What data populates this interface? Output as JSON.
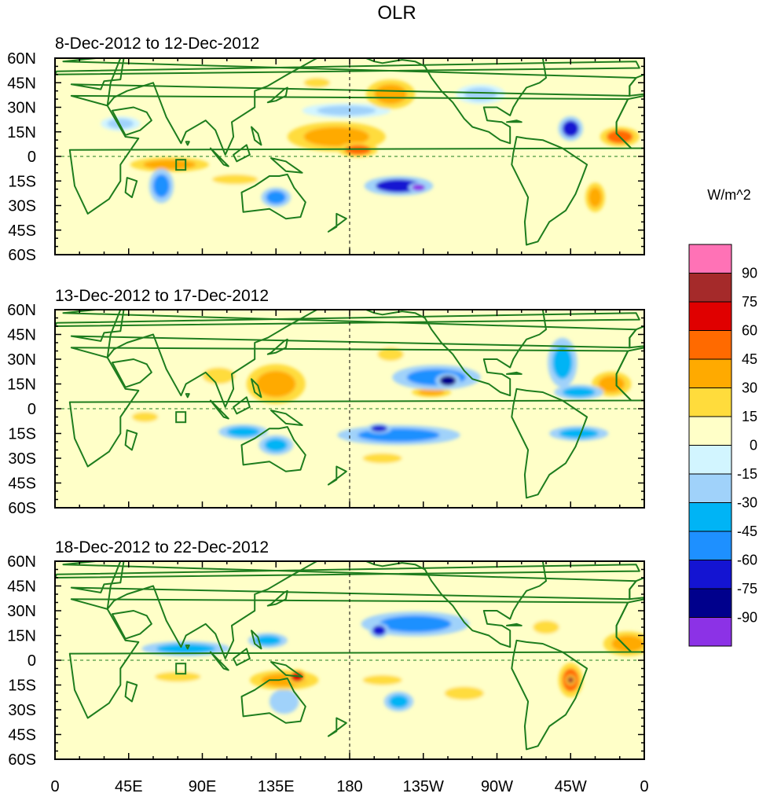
{
  "figure": {
    "title": "OLR",
    "units": "W/m^2",
    "lat_labels": [
      "60N",
      "45N",
      "30N",
      "15N",
      "0",
      "15S",
      "30S",
      "45S",
      "60S"
    ],
    "lon_labels": [
      "0",
      "45E",
      "90E",
      "135E",
      "180",
      "135W",
      "90W",
      "45W",
      "0"
    ],
    "colorbar": {
      "labels": [
        "90",
        "75",
        "60",
        "45",
        "30",
        "15",
        "0",
        "-15",
        "-30",
        "-45",
        "-60",
        "-75",
        "-90"
      ],
      "colors": [
        "#ff72b6",
        "#a52a2a",
        "#e00000",
        "#ff6a00",
        "#ffaa00",
        "#ffdc3c",
        "#ffffc8",
        "#d2f5ff",
        "#a0d2fa",
        "#00b4f5",
        "#1e90ff",
        "#1414d2",
        "#00008c",
        "#8c32e6"
      ]
    },
    "coast_color": "#1e7d1e",
    "grid_color": "#1e7d1e"
  },
  "panels": [
    {
      "title": "8-Dec-2012 to 12-Dec-2012",
      "anomalies": [
        {
          "lon": 172,
          "lat": 12,
          "rx": 20,
          "ry": 6,
          "v": 35
        },
        {
          "lon": 185,
          "lat": 4,
          "rx": 8,
          "ry": 3,
          "v": 50
        },
        {
          "lon": 210,
          "lat": -18,
          "rx": 14,
          "ry": 4,
          "v": -70
        },
        {
          "lon": 222,
          "lat": -19,
          "rx": 4,
          "ry": 2,
          "v": -92
        },
        {
          "lon": 135,
          "lat": -25,
          "rx": 6,
          "ry": 4,
          "v": -55
        },
        {
          "lon": 65,
          "lat": -18,
          "rx": 5,
          "ry": 7,
          "v": -55
        },
        {
          "lon": 70,
          "lat": -5,
          "rx": 16,
          "ry": 3,
          "v": 30
        },
        {
          "lon": 315,
          "lat": 17,
          "rx": 5,
          "ry": 5,
          "v": -65
        },
        {
          "lon": 345,
          "lat": 12,
          "rx": 8,
          "ry": 4,
          "v": 45
        },
        {
          "lon": 205,
          "lat": 38,
          "rx": 10,
          "ry": 6,
          "v": 30
        },
        {
          "lon": 178,
          "lat": 28,
          "rx": 18,
          "ry": 3,
          "v": -20
        },
        {
          "lon": 330,
          "lat": -25,
          "rx": 4,
          "ry": 6,
          "v": 30
        },
        {
          "lon": 110,
          "lat": -14,
          "rx": 14,
          "ry": 3,
          "v": 20
        },
        {
          "lon": 40,
          "lat": 20,
          "rx": 8,
          "ry": 3,
          "v": -20
        },
        {
          "lon": 260,
          "lat": 38,
          "rx": 10,
          "ry": 4,
          "v": -20
        },
        {
          "lon": 160,
          "lat": 45,
          "rx": 8,
          "ry": 3,
          "v": 15
        }
      ]
    },
    {
      "title": "13-Dec-2012 to 17-Dec-2012",
      "anomalies": [
        {
          "lon": 233,
          "lat": 19,
          "rx": 18,
          "ry": 5,
          "v": -60
        },
        {
          "lon": 240,
          "lat": 17,
          "rx": 5,
          "ry": 3,
          "v": -80
        },
        {
          "lon": 210,
          "lat": -16,
          "rx": 25,
          "ry": 4,
          "v": -55
        },
        {
          "lon": 198,
          "lat": -12,
          "rx": 5,
          "ry": 2,
          "v": -75
        },
        {
          "lon": 135,
          "lat": 15,
          "rx": 12,
          "ry": 8,
          "v": 35
        },
        {
          "lon": 115,
          "lat": -14,
          "rx": 10,
          "ry": 3,
          "v": -40
        },
        {
          "lon": 135,
          "lat": -22,
          "rx": 7,
          "ry": 4,
          "v": -45
        },
        {
          "lon": 310,
          "lat": 28,
          "rx": 6,
          "ry": 10,
          "v": -45
        },
        {
          "lon": 320,
          "lat": 10,
          "rx": 10,
          "ry": 3,
          "v": -35
        },
        {
          "lon": 340,
          "lat": 15,
          "rx": 8,
          "ry": 5,
          "v": 30
        },
        {
          "lon": 205,
          "lat": 33,
          "rx": 8,
          "ry": 4,
          "v": 25
        },
        {
          "lon": 320,
          "lat": -15,
          "rx": 12,
          "ry": 3,
          "v": -40
        },
        {
          "lon": 200,
          "lat": -30,
          "rx": 12,
          "ry": 3,
          "v": 25
        },
        {
          "lon": 230,
          "lat": 10,
          "rx": 8,
          "ry": 2,
          "v": 30
        },
        {
          "lon": 55,
          "lat": -5,
          "rx": 8,
          "ry": 3,
          "v": 20
        },
        {
          "lon": 100,
          "lat": 20,
          "rx": 10,
          "ry": 5,
          "v": 20
        }
      ]
    },
    {
      "title": "18-Dec-2012 to 22-Dec-2012",
      "anomalies": [
        {
          "lon": 140,
          "lat": -12,
          "rx": 14,
          "ry": 4,
          "v": 40
        },
        {
          "lon": 148,
          "lat": -10,
          "rx": 4,
          "ry": 3,
          "v": 65
        },
        {
          "lon": 315,
          "lat": -12,
          "rx": 5,
          "ry": 7,
          "v": 50
        },
        {
          "lon": 315,
          "lat": -12,
          "rx": 2,
          "ry": 2,
          "v": 80
        },
        {
          "lon": 220,
          "lat": 22,
          "rx": 22,
          "ry": 5,
          "v": -50
        },
        {
          "lon": 198,
          "lat": 18,
          "rx": 4,
          "ry": 3,
          "v": -65
        },
        {
          "lon": 80,
          "lat": 7,
          "rx": 18,
          "ry": 3,
          "v": -40
        },
        {
          "lon": 75,
          "lat": -10,
          "rx": 14,
          "ry": 3,
          "v": 25
        },
        {
          "lon": 200,
          "lat": -12,
          "rx": 12,
          "ry": 3,
          "v": 20
        },
        {
          "lon": 350,
          "lat": 10,
          "rx": 10,
          "ry": 5,
          "v": 35
        },
        {
          "lon": 130,
          "lat": 12,
          "rx": 8,
          "ry": 3,
          "v": -40
        },
        {
          "lon": 210,
          "lat": -25,
          "rx": 6,
          "ry": 4,
          "v": -40
        },
        {
          "lon": 140,
          "lat": -25,
          "rx": 6,
          "ry": 5,
          "v": -30
        },
        {
          "lon": 300,
          "lat": 20,
          "rx": 8,
          "ry": 4,
          "v": 20
        },
        {
          "lon": 250,
          "lat": -20,
          "rx": 12,
          "ry": 4,
          "v": 20
        }
      ]
    }
  ]
}
